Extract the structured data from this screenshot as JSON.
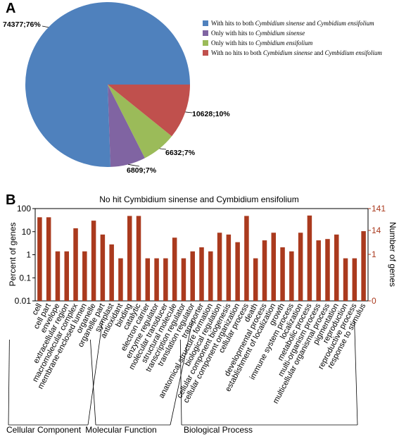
{
  "colors": {
    "slice_both": "#4f81bd",
    "slice_sinense": "#8064a2",
    "slice_ensifolium": "#9bbb59",
    "slice_none": "#c0504d",
    "bar": "#aa3a1e",
    "right_axis": "#aa3a1e"
  },
  "chart_data": [
    {
      "type": "pie",
      "panel_label": "A",
      "slices": [
        {
          "label": "74377;76%",
          "value": 74377,
          "percent": 76,
          "legend": [
            {
              "t": "With hits to both ",
              "i": false
            },
            {
              "t": "Cymbidium sinense",
              "i": true
            },
            {
              "t": " and ",
              "i": false
            },
            {
              "t": "Cymbidium ensifolium",
              "i": true
            }
          ]
        },
        {
          "label": "6809;7%",
          "value": 6809,
          "percent": 7,
          "legend": [
            {
              "t": "Only with hits to ",
              "i": false
            },
            {
              "t": "Cymbidium sinense",
              "i": true
            }
          ]
        },
        {
          "label": "6632;7%",
          "value": 6632,
          "percent": 7,
          "legend": [
            {
              "t": "Only with hits to ",
              "i": false
            },
            {
              "t": "Cymbidium ensifolium",
              "i": true
            }
          ]
        },
        {
          "label": "10628;10%",
          "value": 10628,
          "percent": 10,
          "legend": [
            {
              "t": "With no hits to both ",
              "i": false
            },
            {
              "t": "Cymbidium sinense",
              "i": true
            },
            {
              "t": " and ",
              "i": false
            },
            {
              "t": "Cymbidium ensifolium",
              "i": true
            }
          ]
        }
      ],
      "legend_position": "right"
    },
    {
      "type": "bar",
      "panel_label": "B",
      "title": "No hit Cymbidium sinense and Cymbidium ensifolium",
      "ylabel": "Percent of genes",
      "y2label": "Number of genes",
      "yscale": "log",
      "ylim": [
        0.01,
        100
      ],
      "yticks": [
        "100",
        "10",
        "1",
        "0.1",
        "0.01"
      ],
      "y2ticks": [
        "141",
        "14",
        "1",
        "0"
      ],
      "categories": [
        "cell",
        "cell part",
        "envelope",
        "extracellular region",
        "macromolecular complex",
        "membrane-enclosed lumen",
        "organelle",
        "organelle part",
        "symplast",
        "antioxidant",
        "binding",
        "catalytic",
        "electron carrier",
        "enzyme regulator",
        "molecular transducer",
        "structural molecule",
        "transcription regulator",
        "translation regulator",
        "transporter",
        "anatomical structure formation",
        "biological regulation",
        "cellular component biogenesis",
        "cellular component organization",
        "cellular process",
        "death",
        "developmental process",
        "establishment of localization",
        "growth",
        "immune system process",
        "localization",
        "metabolic process",
        "multi-organism process",
        "multicellular organismal process",
        "pigmentation",
        "reproduction",
        "reproductive process",
        "response to stimulus"
      ],
      "values": [
        42,
        42,
        1.4,
        1.4,
        14,
        1.4,
        30,
        7.5,
        2.8,
        0.7,
        48,
        48,
        0.7,
        0.7,
        0.7,
        5.5,
        0.7,
        1.4,
        2.1,
        1.4,
        9,
        7.5,
        3.5,
        48,
        0.7,
        4.2,
        9,
        2.1,
        1.4,
        9,
        50,
        4.2,
        4.8,
        7.5,
        0.7,
        0.7,
        10.5
      ],
      "groups": [
        {
          "label": "Cellular Component",
          "start": 0,
          "end": 8
        },
        {
          "label": "Molecular Function",
          "start": 9,
          "end": 18
        },
        {
          "label": "Biological Process",
          "start": 19,
          "end": 36
        }
      ]
    }
  ]
}
